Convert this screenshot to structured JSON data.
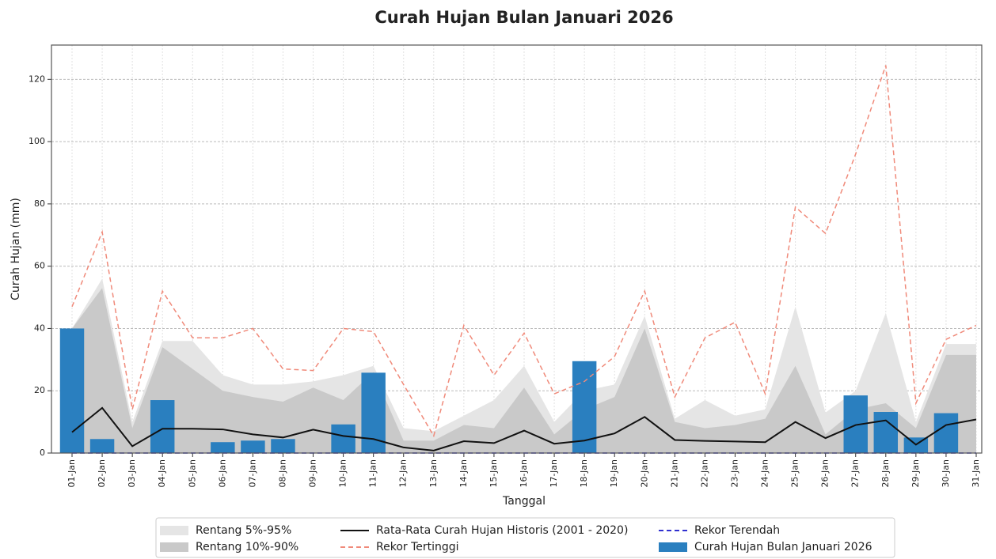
{
  "chart_data": {
    "type": "combo",
    "title": "Curah Hujan Bulan Januari 2026",
    "x_label": "Tanggal",
    "y_label": "Curah Hujan (mm)",
    "categories": [
      "01-Jan",
      "02-Jan",
      "03-Jan",
      "04-Jan",
      "05-Jan",
      "06-Jan",
      "07-Jan",
      "08-Jan",
      "09-Jan",
      "10-Jan",
      "11-Jan",
      "12-Jan",
      "13-Jan",
      "14-Jan",
      "15-Jan",
      "16-Jan",
      "17-Jan",
      "18-Jan",
      "19-Jan",
      "20-Jan",
      "21-Jan",
      "22-Jan",
      "23-Jan",
      "24-Jan",
      "25-Jan",
      "26-Jan",
      "27-Jan",
      "28-Jan",
      "29-Jan",
      "30-Jan",
      "31-Jan"
    ],
    "ylim": [
      0,
      131
    ],
    "yticks": [
      0,
      20,
      40,
      60,
      80,
      100,
      120
    ],
    "grid": true,
    "legend": "bottom",
    "series": [
      {
        "name": "Rentang 5%-95%",
        "kind": "area",
        "color": "#e5e5e5",
        "values": [
          40,
          56,
          10,
          36,
          36,
          25,
          22,
          22,
          23,
          25,
          28,
          8,
          7,
          12,
          17,
          28,
          10,
          20,
          22,
          44,
          11,
          17,
          12,
          14,
          47,
          13,
          20,
          45,
          10,
          35,
          35
        ]
      },
      {
        "name": "Rentang 10%-90%",
        "kind": "area",
        "color": "#c9c9c9",
        "values": [
          40,
          53,
          8,
          34,
          27,
          20,
          18,
          16.5,
          21,
          17,
          26,
          4,
          4,
          9,
          8,
          21,
          6,
          14,
          18,
          40,
          10,
          8,
          9,
          11,
          28,
          6,
          14,
          16,
          8,
          31.5,
          31.5
        ]
      },
      {
        "name": "Rata-Rata Curah Hujan Historis (2001 - 2020)",
        "kind": "line",
        "color": "#111111",
        "style": "solid",
        "values": [
          6.7,
          14.5,
          2.2,
          7.8,
          7.8,
          7.6,
          6,
          5,
          7.5,
          5.5,
          4.5,
          1.8,
          0.8,
          3.8,
          3.2,
          7.2,
          3,
          4,
          6.3,
          11.6,
          4.2,
          3.9,
          3.7,
          3.5,
          10,
          4.8,
          9,
          10.5,
          2.7,
          9,
          10.8
        ]
      },
      {
        "name": "Rekor Tertinggi",
        "kind": "line",
        "color": "#f08a7a",
        "style": "dashed",
        "values": [
          47,
          71,
          14,
          52,
          37,
          37,
          40,
          27,
          26.5,
          40,
          39,
          22,
          5.5,
          41,
          25,
          38.5,
          19,
          23,
          31,
          52,
          18,
          37,
          42,
          19,
          79,
          70.5,
          96,
          124.5,
          16,
          36.5,
          41
        ]
      },
      {
        "name": "Rekor Terendah",
        "kind": "line",
        "color": "#3030d0",
        "style": "dashed",
        "values": [
          0,
          0,
          0,
          0,
          0,
          0,
          0,
          0,
          0,
          0,
          0,
          0,
          0,
          0,
          0,
          0,
          0,
          0,
          0,
          0,
          0,
          0,
          0,
          0,
          0,
          0,
          0,
          0,
          0,
          0,
          0
        ]
      },
      {
        "name": "Curah Hujan Bulan Januari 2026",
        "kind": "bar",
        "color": "#2a7fbf",
        "values": [
          40,
          4.5,
          0,
          17,
          0,
          3.5,
          4,
          4.5,
          0,
          9.2,
          25.8,
          0,
          0,
          0,
          0,
          0,
          0,
          29.5,
          0,
          0,
          0,
          0,
          0,
          0,
          0,
          0,
          18.5,
          13.2,
          5,
          12.8,
          0
        ]
      }
    ]
  }
}
